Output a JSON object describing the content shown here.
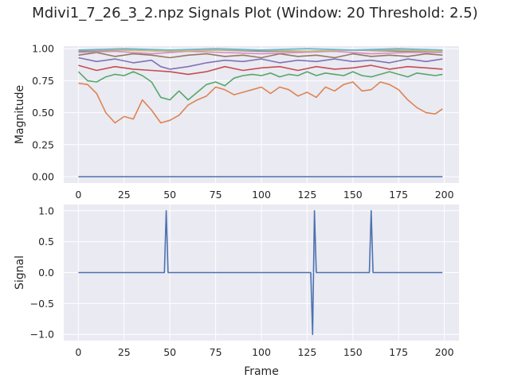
{
  "title": "Mdivi1_7_26_3_2.npz Signals Plot (Window: 20 Threshold: 2.5)",
  "colors": {
    "axes_bg": "#eaeaf2",
    "grid": "#ffffff",
    "text": "#262626",
    "series": [
      "#4c72b0",
      "#dd8452",
      "#55a868",
      "#c44e52",
      "#8172b3",
      "#937860",
      "#da8bc3",
      "#8c8c8c",
      "#ccb974",
      "#64b5cd"
    ]
  },
  "chart_data": [
    {
      "type": "line",
      "ylabel": "Magnitude",
      "xlabel": "",
      "xlim": [
        -8,
        208
      ],
      "ylim": [
        -0.05,
        1.02
      ],
      "xticks": [
        0,
        25,
        50,
        75,
        100,
        125,
        150,
        175,
        200
      ],
      "yticks": [
        0.0,
        0.25,
        0.5,
        0.75,
        1.0
      ],
      "ytick_labels": [
        "0.00",
        "0.25",
        "0.50",
        "0.75",
        "1.00"
      ],
      "grid": true,
      "series": [
        {
          "color": "#4c72b0",
          "x": [
            0,
            199
          ],
          "y": [
            0.0,
            0.0
          ]
        },
        {
          "color": "#dd8452",
          "x": [
            0,
            5,
            10,
            15,
            20,
            25,
            30,
            35,
            40,
            45,
            50,
            55,
            60,
            65,
            70,
            75,
            80,
            85,
            90,
            95,
            100,
            105,
            110,
            115,
            120,
            125,
            130,
            135,
            140,
            145,
            150,
            155,
            160,
            165,
            170,
            175,
            180,
            185,
            190,
            195,
            199
          ],
          "y": [
            0.73,
            0.72,
            0.65,
            0.5,
            0.42,
            0.47,
            0.45,
            0.6,
            0.52,
            0.42,
            0.44,
            0.48,
            0.56,
            0.6,
            0.63,
            0.7,
            0.68,
            0.64,
            0.66,
            0.68,
            0.7,
            0.65,
            0.7,
            0.68,
            0.63,
            0.66,
            0.62,
            0.7,
            0.67,
            0.72,
            0.74,
            0.67,
            0.68,
            0.74,
            0.72,
            0.68,
            0.6,
            0.54,
            0.5,
            0.49,
            0.53
          ]
        },
        {
          "color": "#55a868",
          "x": [
            0,
            5,
            10,
            15,
            20,
            25,
            30,
            35,
            40,
            45,
            50,
            55,
            60,
            65,
            70,
            75,
            80,
            85,
            90,
            95,
            100,
            105,
            110,
            115,
            120,
            125,
            130,
            135,
            140,
            145,
            150,
            155,
            160,
            165,
            170,
            175,
            180,
            185,
            190,
            195,
            199
          ],
          "y": [
            0.82,
            0.75,
            0.74,
            0.78,
            0.8,
            0.79,
            0.82,
            0.79,
            0.74,
            0.62,
            0.6,
            0.67,
            0.6,
            0.66,
            0.72,
            0.74,
            0.71,
            0.77,
            0.79,
            0.8,
            0.79,
            0.81,
            0.78,
            0.8,
            0.79,
            0.82,
            0.79,
            0.81,
            0.8,
            0.79,
            0.82,
            0.79,
            0.78,
            0.8,
            0.82,
            0.8,
            0.78,
            0.81,
            0.8,
            0.79,
            0.8
          ]
        },
        {
          "color": "#c44e52",
          "x": [
            0,
            10,
            20,
            30,
            40,
            50,
            60,
            70,
            80,
            90,
            100,
            110,
            120,
            130,
            140,
            150,
            160,
            170,
            180,
            190,
            199
          ],
          "y": [
            0.87,
            0.83,
            0.86,
            0.84,
            0.83,
            0.82,
            0.8,
            0.82,
            0.86,
            0.83,
            0.85,
            0.86,
            0.83,
            0.86,
            0.84,
            0.85,
            0.87,
            0.84,
            0.86,
            0.85,
            0.84
          ]
        },
        {
          "color": "#8172b3",
          "x": [
            0,
            10,
            20,
            30,
            40,
            45,
            50,
            60,
            70,
            80,
            90,
            100,
            110,
            120,
            130,
            140,
            150,
            160,
            170,
            180,
            190,
            199
          ],
          "y": [
            0.93,
            0.9,
            0.92,
            0.89,
            0.91,
            0.86,
            0.84,
            0.86,
            0.89,
            0.91,
            0.9,
            0.92,
            0.89,
            0.91,
            0.9,
            0.92,
            0.9,
            0.91,
            0.89,
            0.92,
            0.9,
            0.92
          ]
        },
        {
          "color": "#937860",
          "x": [
            0,
            10,
            20,
            30,
            40,
            50,
            60,
            70,
            80,
            90,
            100,
            110,
            120,
            130,
            140,
            150,
            160,
            170,
            180,
            190,
            199
          ],
          "y": [
            0.95,
            0.97,
            0.94,
            0.96,
            0.95,
            0.93,
            0.95,
            0.96,
            0.94,
            0.95,
            0.93,
            0.96,
            0.94,
            0.95,
            0.93,
            0.96,
            0.94,
            0.95,
            0.94,
            0.96,
            0.95
          ]
        },
        {
          "color": "#da8bc3",
          "x": [
            0,
            20,
            40,
            60,
            80,
            100,
            120,
            140,
            160,
            180,
            199
          ],
          "y": [
            0.97,
            0.98,
            0.96,
            0.98,
            0.97,
            0.96,
            0.97,
            0.98,
            0.96,
            0.97,
            0.97
          ]
        },
        {
          "color": "#8c8c8c",
          "x": [
            0,
            25,
            50,
            75,
            100,
            125,
            150,
            175,
            199
          ],
          "y": [
            0.98,
            0.99,
            0.98,
            0.99,
            0.98,
            0.98,
            0.99,
            0.98,
            0.98
          ]
        },
        {
          "color": "#ccb974",
          "x": [
            0,
            25,
            50,
            75,
            100,
            125,
            150,
            175,
            199
          ],
          "y": [
            0.99,
            0.99,
            0.98,
            0.99,
            0.99,
            0.98,
            0.99,
            0.99,
            0.98
          ]
        },
        {
          "color": "#64b5cd",
          "x": [
            0,
            25,
            50,
            75,
            100,
            125,
            150,
            175,
            199
          ],
          "y": [
            0.99,
            1.0,
            0.99,
            1.0,
            0.99,
            1.0,
            0.99,
            1.0,
            0.99
          ]
        }
      ]
    },
    {
      "type": "line",
      "ylabel": "Signal",
      "xlabel": "Frame",
      "xlim": [
        -8,
        208
      ],
      "ylim": [
        -1.1,
        1.1
      ],
      "xticks": [
        0,
        25,
        50,
        75,
        100,
        125,
        150,
        175,
        200
      ],
      "yticks": [
        -1.0,
        -0.5,
        0.0,
        0.5,
        1.0
      ],
      "ytick_labels": [
        "−1.0",
        "−0.5",
        "0.0",
        "0.5",
        "1.0"
      ],
      "grid": true,
      "series": [
        {
          "color": "#4c72b0",
          "x": [
            0,
            47,
            48,
            49,
            127,
            128,
            129,
            130,
            159,
            160,
            161,
            199
          ],
          "y": [
            0,
            0,
            1,
            0,
            0,
            -1,
            1,
            0,
            0,
            1,
            0,
            0
          ]
        }
      ]
    }
  ]
}
